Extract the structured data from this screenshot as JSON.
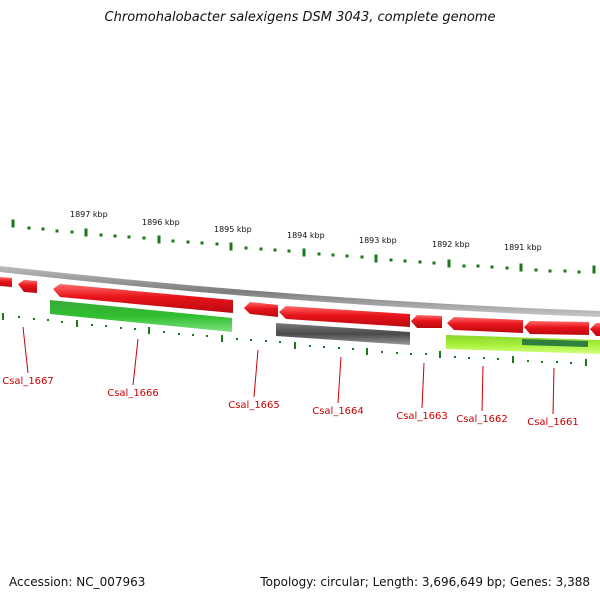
{
  "title": "Chromohalobacter salexigens DSM 3043, complete genome",
  "footer": {
    "accession": "Accession: NC_007963",
    "summary": "Topology: circular; Length: 3,696,649 bp; Genes: 3,388"
  },
  "colors": {
    "gene_forward": "#e8131a",
    "gene_green": "#2fbf2f",
    "gene_gray": "#5a5a5a",
    "gene_lime": "#a6f03a",
    "gene_darkgreen": "#2f7f3f",
    "backbone": "#8a8a8a",
    "tick": "#1a7a1a",
    "label": "#cc0000"
  },
  "kbp_labels": [
    "1897 kbp",
    "1896 kbp",
    "1895 kbp",
    "1894 kbp",
    "1893 kbp",
    "1892 kbp",
    "1891 kbp"
  ],
  "genes": [
    {
      "id": "Csal_1667"
    },
    {
      "id": "Csal_1666"
    },
    {
      "id": "Csal_1665"
    },
    {
      "id": "Csal_1664"
    },
    {
      "id": "Csal_1663"
    },
    {
      "id": "Csal_1662"
    },
    {
      "id": "Csal_1661"
    }
  ]
}
